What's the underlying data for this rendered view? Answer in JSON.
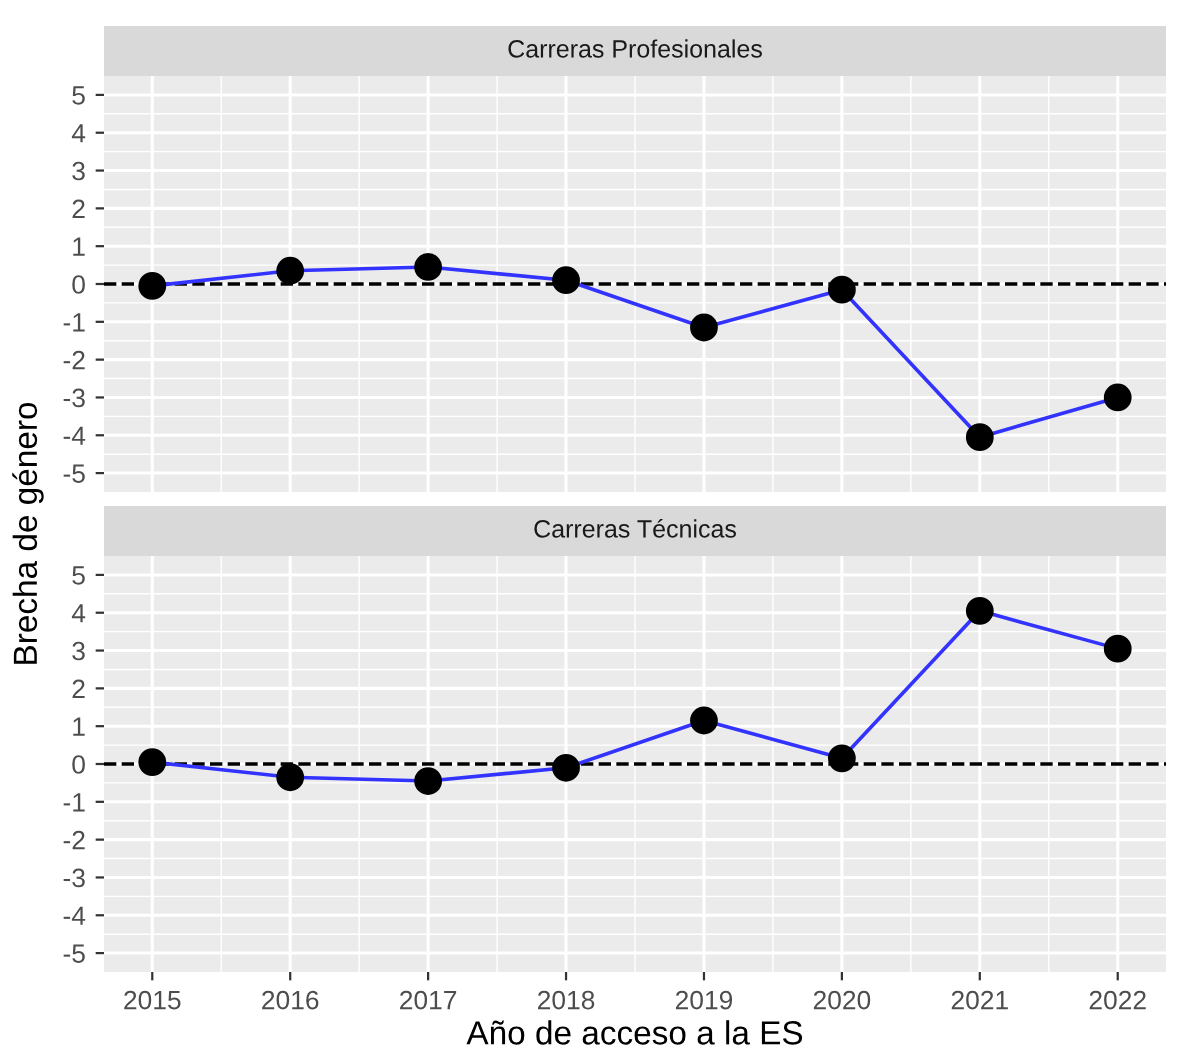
{
  "chart_data": [
    {
      "type": "line",
      "title": "Carreras Profesionales",
      "ylabel": "Brecha de género",
      "x": [
        2015,
        2016,
        2017,
        2018,
        2019,
        2020,
        2021,
        2022
      ],
      "series": [
        {
          "color": "#3333ff",
          "values": [
            -0.05,
            0.35,
            0.45,
            0.1,
            -1.15,
            -0.15,
            -4.05,
            -3.0
          ]
        }
      ],
      "marker": "circle",
      "line_style": "solid",
      "xlim": [
        2014.65,
        2022.35
      ],
      "xticks": [
        2015,
        2016,
        2017,
        2018,
        2019,
        2020,
        2021,
        2022
      ],
      "ylim": [
        -5.5,
        5.5
      ],
      "yticks": [
        -5,
        -4,
        -3,
        -2,
        -1,
        0,
        1,
        2,
        3,
        4,
        5
      ],
      "ref_lines": [
        {
          "axis": "y",
          "value": 0,
          "color": "#000000",
          "line_style": "dashed"
        }
      ],
      "grid": true,
      "tick_labels": "y"
    },
    {
      "type": "line",
      "title": "Carreras Técnicas",
      "xlabel": "Año de acceso a la ES",
      "x": [
        2015,
        2016,
        2017,
        2018,
        2019,
        2020,
        2021,
        2022
      ],
      "series": [
        {
          "color": "#3333ff",
          "values": [
            0.05,
            -0.35,
            -0.45,
            -0.1,
            1.15,
            0.15,
            4.05,
            3.05
          ]
        }
      ],
      "marker": "circle",
      "line_style": "solid",
      "xlim": [
        2014.65,
        2022.35
      ],
      "xticks": [
        2015,
        2016,
        2017,
        2018,
        2019,
        2020,
        2021,
        2022
      ],
      "ylim": [
        -5.5,
        5.5
      ],
      "yticks": [
        -5,
        -4,
        -3,
        -2,
        -1,
        0,
        1,
        2,
        3,
        4,
        5
      ],
      "ref_lines": [
        {
          "axis": "y",
          "value": 0,
          "color": "#000000",
          "line_style": "dashed"
        }
      ],
      "grid": true
    }
  ]
}
